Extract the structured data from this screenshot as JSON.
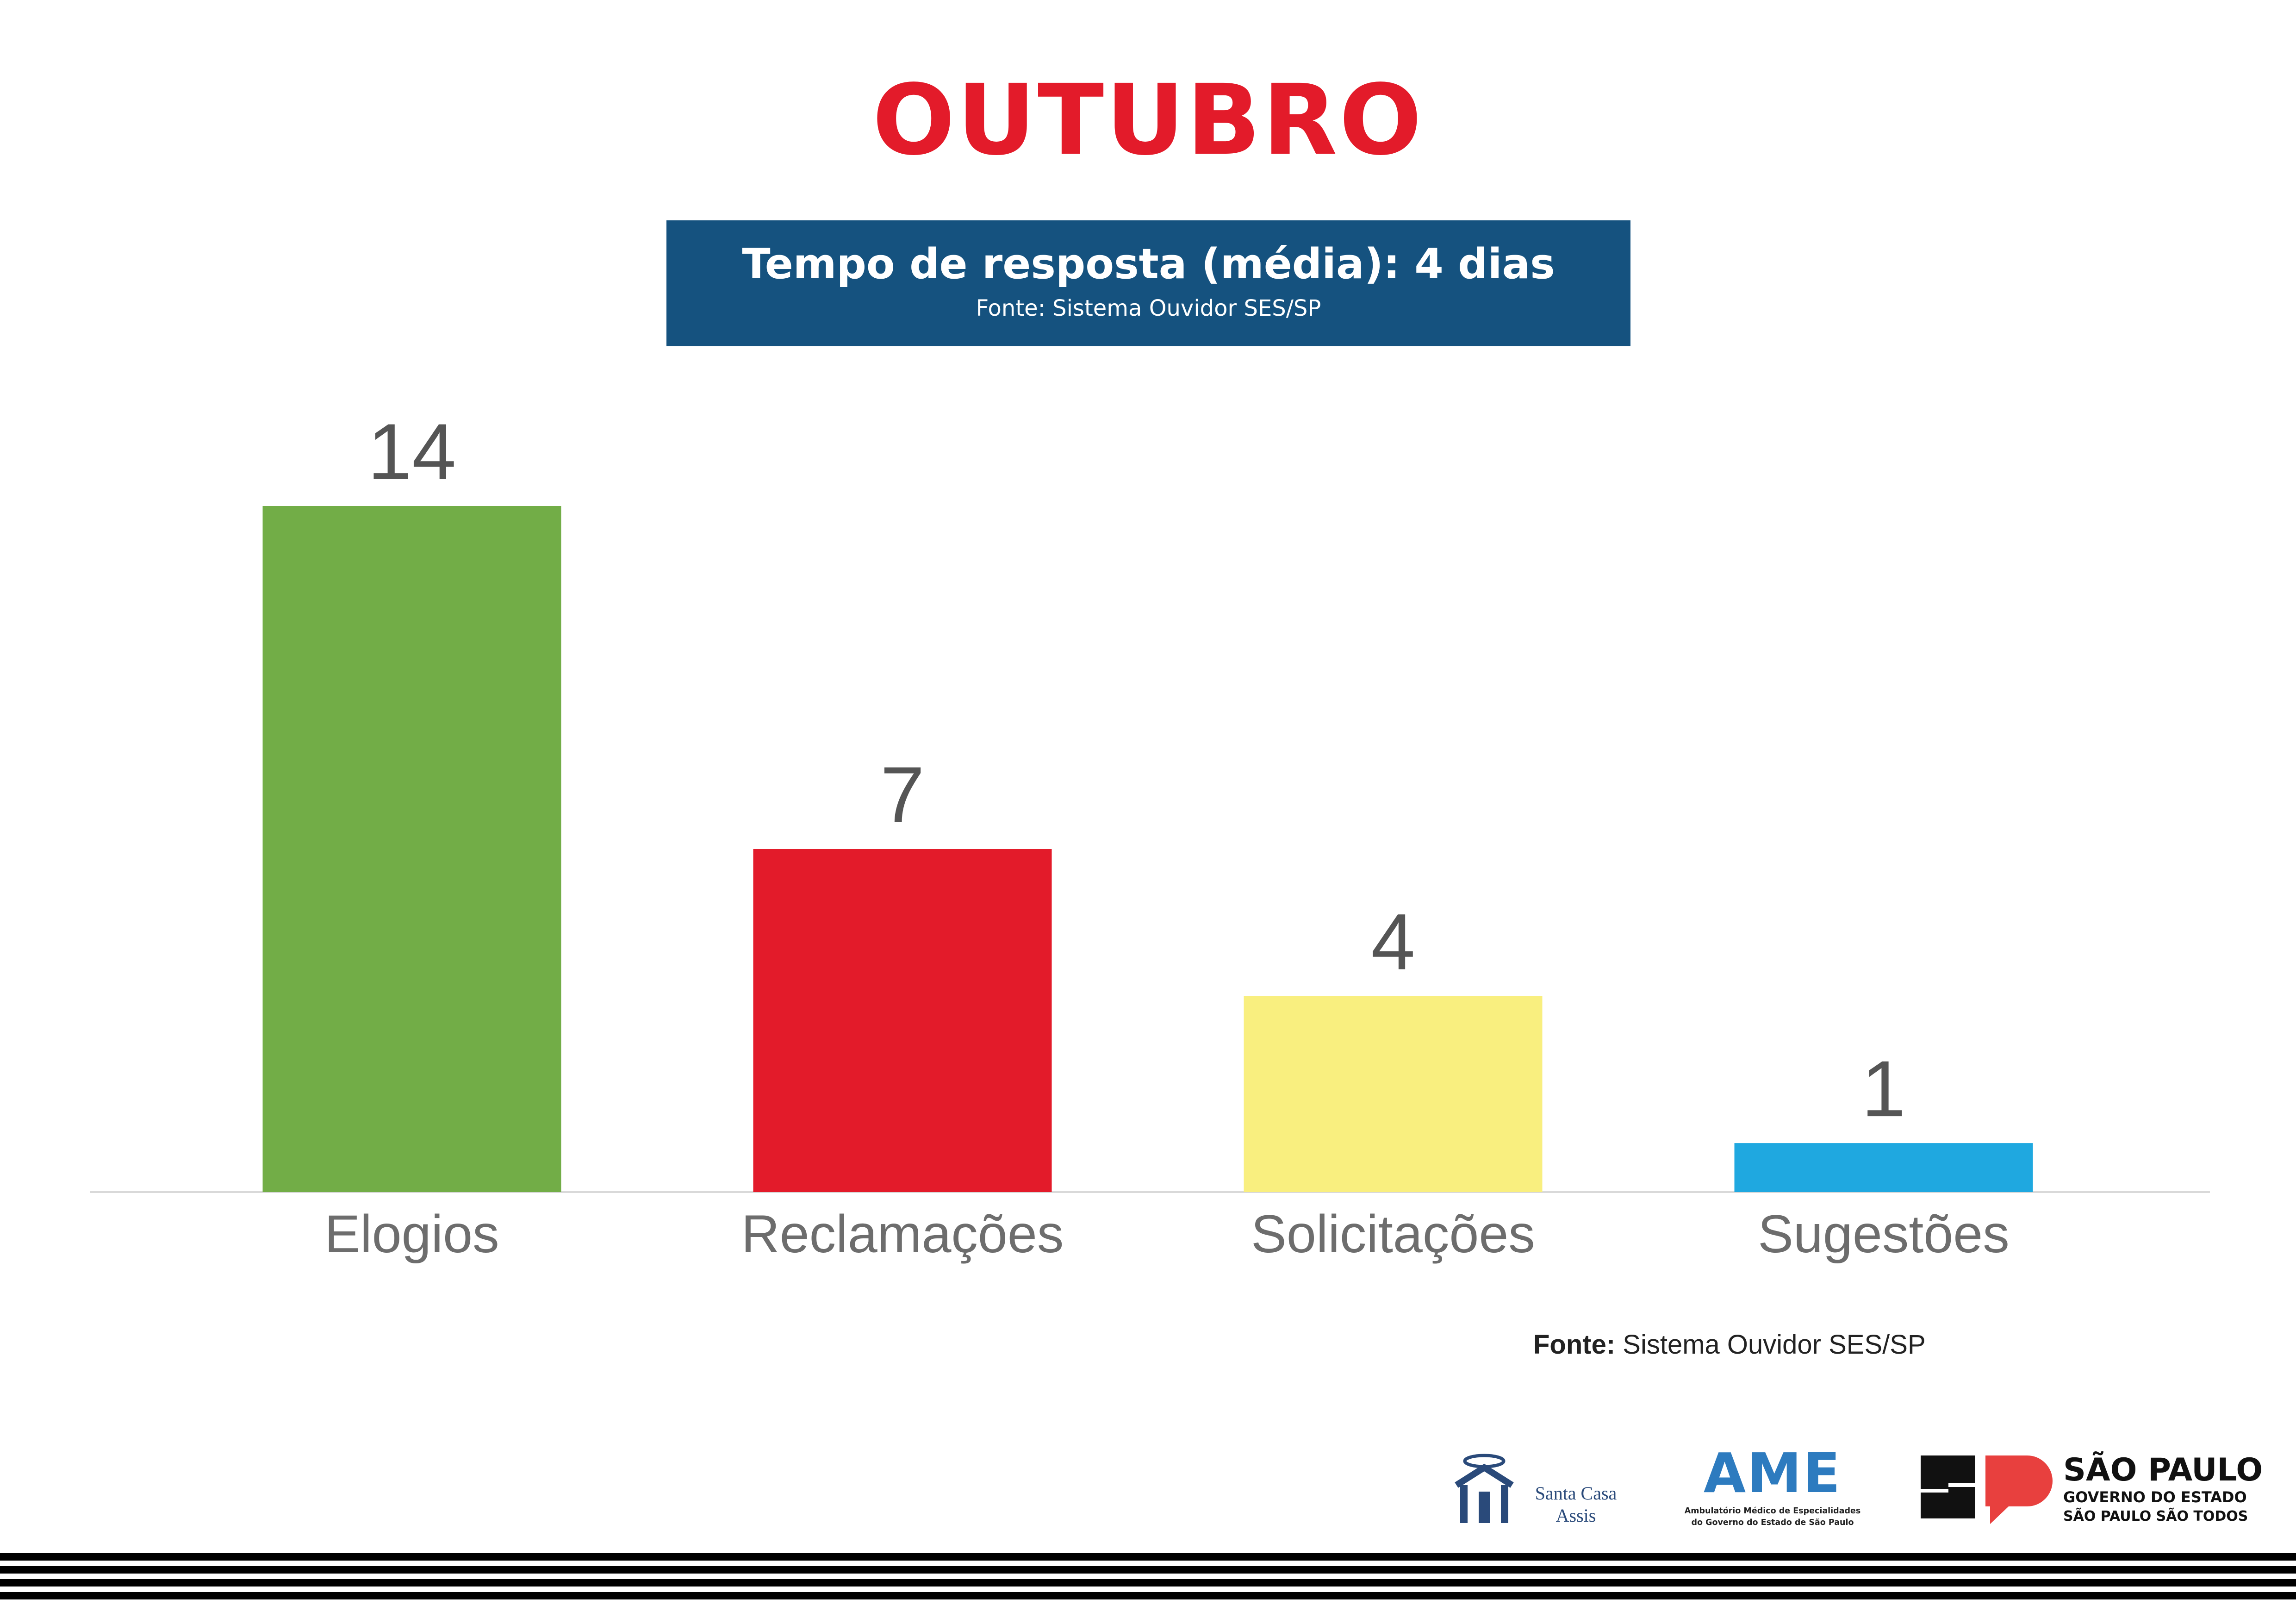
{
  "colors": {
    "title": "#e31b2a",
    "info_box": "#15527f",
    "bar_label": "#555555",
    "category_label": "#6d6d6d",
    "axis_line": "#d9d9d9"
  },
  "title": "OUTUBRO",
  "info_box": {
    "main": "Tempo de resposta (média): 4 dias",
    "sub": "Fonte: Sistema Ouvidor SES/SP"
  },
  "chart_data": {
    "type": "bar",
    "categories": [
      "Elogios",
      "Reclamações",
      "Solicitações",
      "Sugestões"
    ],
    "values": [
      14,
      7,
      4,
      1
    ],
    "colors": [
      "#72ad47",
      "#e31b2a",
      "#f9ef7f",
      "#1fa8e0"
    ],
    "title": "",
    "xlabel": "",
    "ylabel": "",
    "ylim": [
      0,
      14
    ],
    "grid": false,
    "legend": "none",
    "data_labels": true
  },
  "footer": {
    "source_bold": "Fonte:",
    "source_text": " Sistema Ouvidor SES/SP"
  },
  "logos": {
    "santa_casa": {
      "line1": "Santa Casa",
      "line2": "Assis",
      "color": "#2a4a7a"
    },
    "ame": {
      "title": "AME",
      "sub1": "Ambulatório Médico de Especialidades",
      "sub2": "do Governo do Estado de São Paulo",
      "color": "#2d7bbf"
    },
    "sao_paulo": {
      "title": "SÃO PAULO",
      "sub1": "GOVERNO DO ESTADO",
      "sub2": "SÃO PAULO SÃO TODOS",
      "accent": "#e8403e"
    }
  }
}
